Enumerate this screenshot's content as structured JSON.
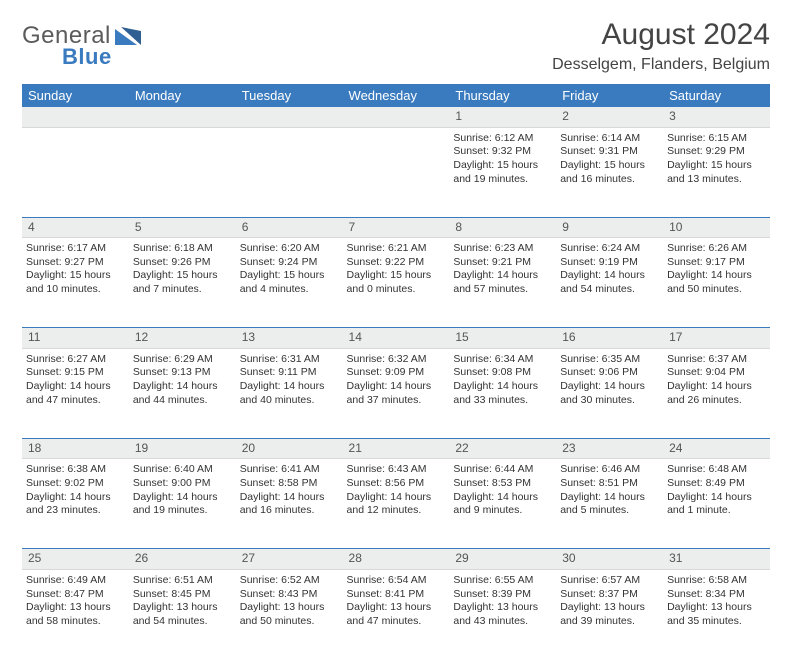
{
  "brand": {
    "part1": "General",
    "part2": "Blue"
  },
  "title": "August 2024",
  "location": "Desselgem, Flanders, Belgium",
  "colors": {
    "header_bg": "#3a7bbf",
    "header_text": "#ffffff",
    "daynum_bg": "#eceded",
    "row_border": "#3a7bbf",
    "text": "#333333",
    "brand_gray": "#5b5b5b",
    "brand_blue": "#3a7bbf"
  },
  "font": {
    "base_size_pt": 10.5,
    "title_size_pt": 30,
    "location_size_pt": 16,
    "header_size_pt": 13,
    "daynum_size_pt": 12
  },
  "day_labels": [
    "Sunday",
    "Monday",
    "Tuesday",
    "Wednesday",
    "Thursday",
    "Friday",
    "Saturday"
  ],
  "weeks": [
    [
      null,
      null,
      null,
      null,
      {
        "n": "1",
        "sr": "6:12 AM",
        "ss": "9:32 PM",
        "dl": "15 hours and 19 minutes."
      },
      {
        "n": "2",
        "sr": "6:14 AM",
        "ss": "9:31 PM",
        "dl": "15 hours and 16 minutes."
      },
      {
        "n": "3",
        "sr": "6:15 AM",
        "ss": "9:29 PM",
        "dl": "15 hours and 13 minutes."
      }
    ],
    [
      {
        "n": "4",
        "sr": "6:17 AM",
        "ss": "9:27 PM",
        "dl": "15 hours and 10 minutes."
      },
      {
        "n": "5",
        "sr": "6:18 AM",
        "ss": "9:26 PM",
        "dl": "15 hours and 7 minutes."
      },
      {
        "n": "6",
        "sr": "6:20 AM",
        "ss": "9:24 PM",
        "dl": "15 hours and 4 minutes."
      },
      {
        "n": "7",
        "sr": "6:21 AM",
        "ss": "9:22 PM",
        "dl": "15 hours and 0 minutes."
      },
      {
        "n": "8",
        "sr": "6:23 AM",
        "ss": "9:21 PM",
        "dl": "14 hours and 57 minutes."
      },
      {
        "n": "9",
        "sr": "6:24 AM",
        "ss": "9:19 PM",
        "dl": "14 hours and 54 minutes."
      },
      {
        "n": "10",
        "sr": "6:26 AM",
        "ss": "9:17 PM",
        "dl": "14 hours and 50 minutes."
      }
    ],
    [
      {
        "n": "11",
        "sr": "6:27 AM",
        "ss": "9:15 PM",
        "dl": "14 hours and 47 minutes."
      },
      {
        "n": "12",
        "sr": "6:29 AM",
        "ss": "9:13 PM",
        "dl": "14 hours and 44 minutes."
      },
      {
        "n": "13",
        "sr": "6:31 AM",
        "ss": "9:11 PM",
        "dl": "14 hours and 40 minutes."
      },
      {
        "n": "14",
        "sr": "6:32 AM",
        "ss": "9:09 PM",
        "dl": "14 hours and 37 minutes."
      },
      {
        "n": "15",
        "sr": "6:34 AM",
        "ss": "9:08 PM",
        "dl": "14 hours and 33 minutes."
      },
      {
        "n": "16",
        "sr": "6:35 AM",
        "ss": "9:06 PM",
        "dl": "14 hours and 30 minutes."
      },
      {
        "n": "17",
        "sr": "6:37 AM",
        "ss": "9:04 PM",
        "dl": "14 hours and 26 minutes."
      }
    ],
    [
      {
        "n": "18",
        "sr": "6:38 AM",
        "ss": "9:02 PM",
        "dl": "14 hours and 23 minutes."
      },
      {
        "n": "19",
        "sr": "6:40 AM",
        "ss": "9:00 PM",
        "dl": "14 hours and 19 minutes."
      },
      {
        "n": "20",
        "sr": "6:41 AM",
        "ss": "8:58 PM",
        "dl": "14 hours and 16 minutes."
      },
      {
        "n": "21",
        "sr": "6:43 AM",
        "ss": "8:56 PM",
        "dl": "14 hours and 12 minutes."
      },
      {
        "n": "22",
        "sr": "6:44 AM",
        "ss": "8:53 PM",
        "dl": "14 hours and 9 minutes."
      },
      {
        "n": "23",
        "sr": "6:46 AM",
        "ss": "8:51 PM",
        "dl": "14 hours and 5 minutes."
      },
      {
        "n": "24",
        "sr": "6:48 AM",
        "ss": "8:49 PM",
        "dl": "14 hours and 1 minute."
      }
    ],
    [
      {
        "n": "25",
        "sr": "6:49 AM",
        "ss": "8:47 PM",
        "dl": "13 hours and 58 minutes."
      },
      {
        "n": "26",
        "sr": "6:51 AM",
        "ss": "8:45 PM",
        "dl": "13 hours and 54 minutes."
      },
      {
        "n": "27",
        "sr": "6:52 AM",
        "ss": "8:43 PM",
        "dl": "13 hours and 50 minutes."
      },
      {
        "n": "28",
        "sr": "6:54 AM",
        "ss": "8:41 PM",
        "dl": "13 hours and 47 minutes."
      },
      {
        "n": "29",
        "sr": "6:55 AM",
        "ss": "8:39 PM",
        "dl": "13 hours and 43 minutes."
      },
      {
        "n": "30",
        "sr": "6:57 AM",
        "ss": "8:37 PM",
        "dl": "13 hours and 39 minutes."
      },
      {
        "n": "31",
        "sr": "6:58 AM",
        "ss": "8:34 PM",
        "dl": "13 hours and 35 minutes."
      }
    ]
  ]
}
